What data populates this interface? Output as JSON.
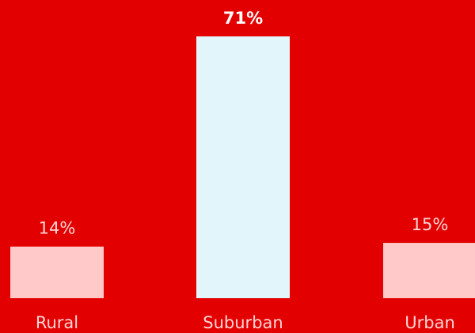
{
  "chart_data": {
    "type": "bar",
    "categories": [
      "Rural",
      "Suburban",
      "Urban"
    ],
    "values": [
      14,
      71,
      15
    ],
    "value_labels": [
      "14%",
      "71%",
      "15%"
    ],
    "highlight_index": 1,
    "ylim": [
      0,
      71
    ],
    "grid": false,
    "colors": {
      "background": "#E30000",
      "bar": "#FFC9C9",
      "bar_highlight": "#E1F5FA",
      "label": "#FFD6D6",
      "label_highlight": "#FFFFFF"
    }
  }
}
